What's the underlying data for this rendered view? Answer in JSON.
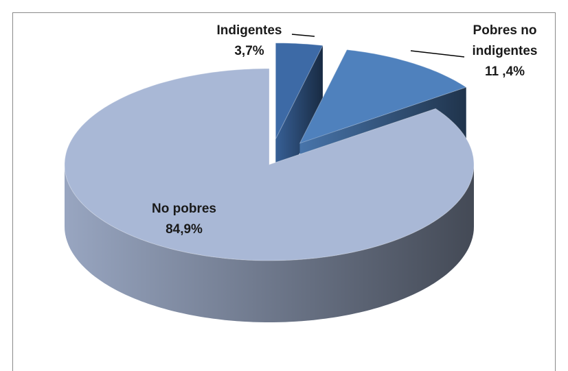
{
  "chart_data": {
    "type": "pie",
    "categories": [
      "Indigentes",
      "Pobres no indigentes",
      "No pobres"
    ],
    "values": [
      3.7,
      11.4,
      84.9
    ],
    "value_labels": [
      "3,7%",
      "11 ,4%",
      "84,9%"
    ],
    "colors": [
      "#3d6aa6",
      "#4f81bd",
      "#a9b8d6"
    ]
  }
}
